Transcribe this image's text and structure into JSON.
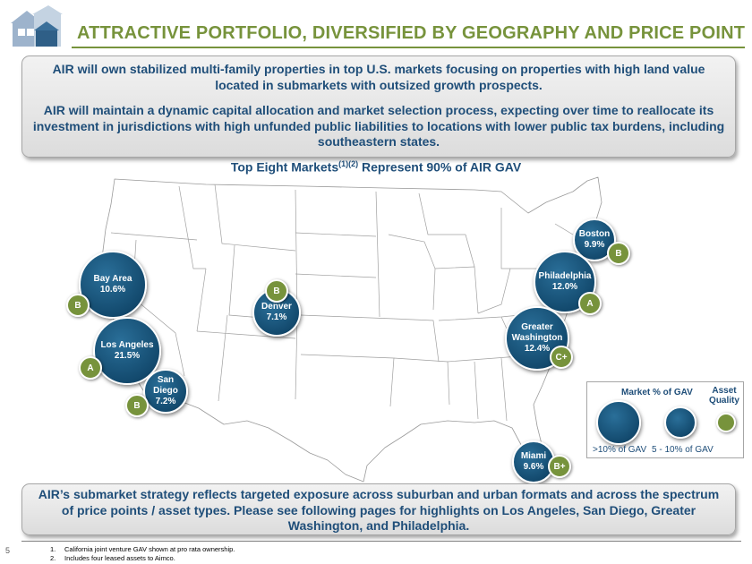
{
  "header": {
    "title": "ATTRACTIVE PORTFOLIO, DIVERSIFIED BY GEOGRAPHY AND PRICE POINT"
  },
  "intro": {
    "paragraph1": "AIR will own stabilized multi-family properties in top U.S. markets focusing on properties with high land value located in submarkets with outsized growth prospects.",
    "paragraph2": "AIR will maintain a dynamic capital allocation and market selection process, expecting over time to reallocate its investment in jurisdictions with high unfunded public liabilities to locations with lower public tax burdens, including southeastern states."
  },
  "map": {
    "title_pre": "Top Eight Markets",
    "title_sup": "(1)(2)",
    "title_post": " Represent 90% of AIR GAV",
    "markets": [
      {
        "name": "Bay Area",
        "pct": "10.6%",
        "grade": "B"
      },
      {
        "name": "Los Angeles",
        "pct": "21.5%",
        "grade": "A"
      },
      {
        "name": "San Diego",
        "pct": "7.2%",
        "grade": "B"
      },
      {
        "name": "Denver",
        "pct": "7.1%",
        "grade": "B"
      },
      {
        "name": "Boston",
        "pct": "9.9%",
        "grade": "B"
      },
      {
        "name": "Philadelphia",
        "pct": "12.0%",
        "grade": "A"
      },
      {
        "name": "Greater Washington",
        "pct": "12.4%",
        "grade": "C+"
      },
      {
        "name": "Miami",
        "pct": "9.6%",
        "grade": "B+"
      }
    ]
  },
  "legend": {
    "market_label": "Market % of GAV",
    "quality_label": "Asset Quality",
    "big_label": ">10% of GAV",
    "small_label": "5 - 10% of GAV"
  },
  "conclusion": {
    "text": "AIR’s submarket strategy reflects targeted exposure across suburban and urban formats and across the spectrum of price points / asset types. Please see following pages for highlights on Los Angeles, San Diego, Greater Washington, and Philadelphia."
  },
  "footer": {
    "page_number": "5",
    "notes": [
      {
        "num": "1.",
        "text": "California joint venture GAV shown at pro rata ownership."
      },
      {
        "num": "2.",
        "text": "Includes four leased assets to Aimco."
      }
    ]
  },
  "colors": {
    "title_green": "#77933c",
    "text_navy": "#1f4e79",
    "bubble_blue": "#134a6e",
    "grade_green": "#77933c"
  }
}
